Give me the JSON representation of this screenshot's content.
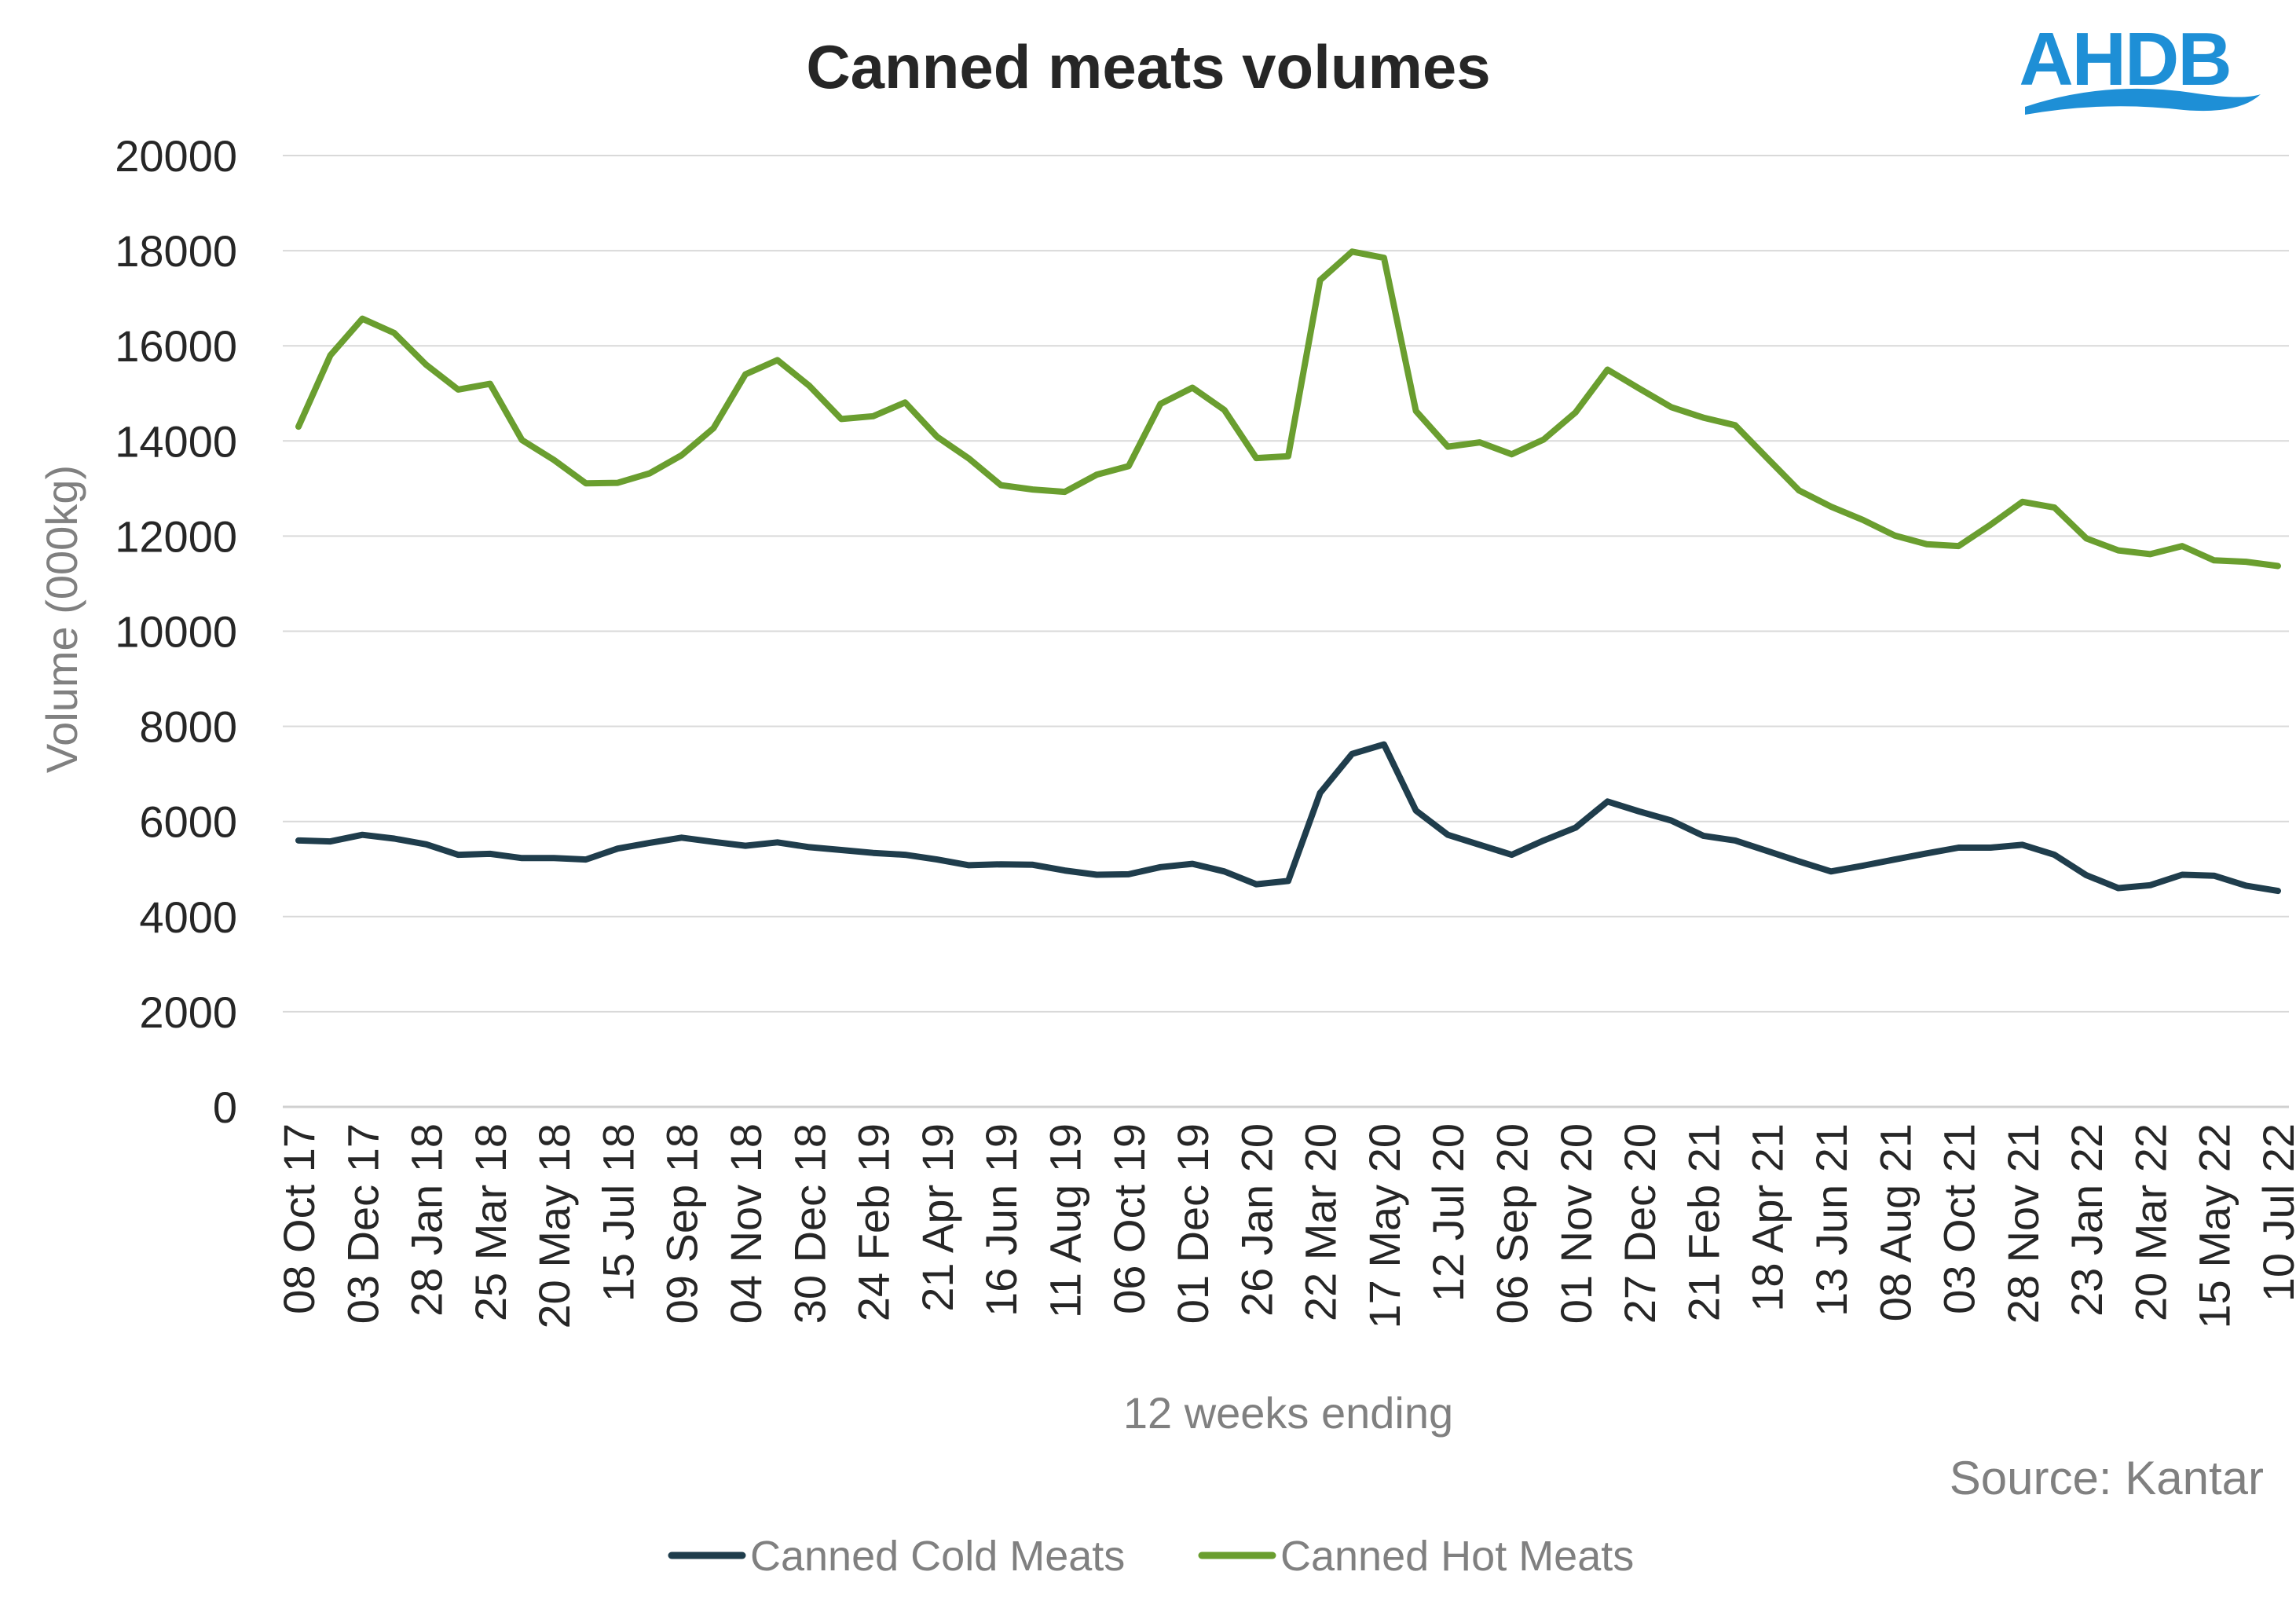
{
  "logo": {
    "text": "AHDB",
    "color": "#1e8fd6"
  },
  "source": "Source: Kantar",
  "chart_data": {
    "type": "line",
    "title": "Canned meats volumes",
    "xlabel": "12 weeks ending",
    "ylabel": "Volume (000kg)",
    "ylim": [
      0,
      20000
    ],
    "yticks": [
      0,
      2000,
      4000,
      6000,
      8000,
      10000,
      12000,
      14000,
      16000,
      18000,
      20000
    ],
    "grid": true,
    "legend_position": "bottom",
    "tick_labels": [
      "08 Oct 17",
      "03 Dec 17",
      "28 Jan 18",
      "25 Mar 18",
      "20 May 18",
      "15 Jul 18",
      "09 Sep 18",
      "04 Nov 18",
      "30 Dec 18",
      "24 Feb 19",
      "21 Apr 19",
      "16 Jun 19",
      "11 Aug 19",
      "06 Oct 19",
      "01 Dec 19",
      "26 Jan 20",
      "22 Mar 20",
      "17 May 20",
      "12 Jul 20",
      "06 Sep 20",
      "01 Nov 20",
      "27 Dec 20",
      "21 Feb 21",
      "18 Apr 21",
      "13 Jun 21",
      "08 Aug 21",
      "03 Oct 21",
      "28 Nov 21",
      "23 Jan 22",
      "20 Mar 22",
      "15 May 22",
      "10 Jul 22"
    ],
    "series": [
      {
        "name": "Canned Cold Meats",
        "color": "#1f3d4c",
        "values": [
          5600,
          5580,
          5720,
          5640,
          5520,
          5300,
          5320,
          5230,
          5230,
          5200,
          5430,
          5550,
          5660,
          5570,
          5490,
          5560,
          5460,
          5400,
          5340,
          5300,
          5200,
          5080,
          5100,
          5090,
          4970,
          4880,
          4890,
          5040,
          5110,
          4950,
          4680,
          4750,
          6600,
          7420,
          7620,
          6230,
          5720,
          5510,
          5300,
          5600,
          5870,
          6420,
          6210,
          6020,
          5700,
          5600,
          5380,
          5160,
          4950,
          5070,
          5200,
          5330,
          5450,
          5450,
          5510,
          5300,
          4870,
          4600,
          4660,
          4880,
          4860,
          4650,
          4540
        ]
      },
      {
        "name": "Canned Hot Meats",
        "color": "#6a9e2f",
        "values": [
          14300,
          15800,
          16570,
          16270,
          15600,
          15080,
          15200,
          14020,
          13600,
          13110,
          13120,
          13320,
          13700,
          14270,
          15400,
          15700,
          15160,
          14460,
          14520,
          14810,
          14090,
          13630,
          13070,
          12980,
          12930,
          13290,
          13470,
          14780,
          15120,
          14650,
          13640,
          13680,
          17380,
          17980,
          17850,
          14630,
          13880,
          13970,
          13720,
          14030,
          14600,
          15500,
          15100,
          14710,
          14490,
          14330,
          13640,
          12960,
          12620,
          12340,
          12010,
          11830,
          11790,
          12240,
          12720,
          12600,
          11950,
          11700,
          11620,
          11790,
          11490,
          11460,
          11370
        ]
      }
    ]
  }
}
